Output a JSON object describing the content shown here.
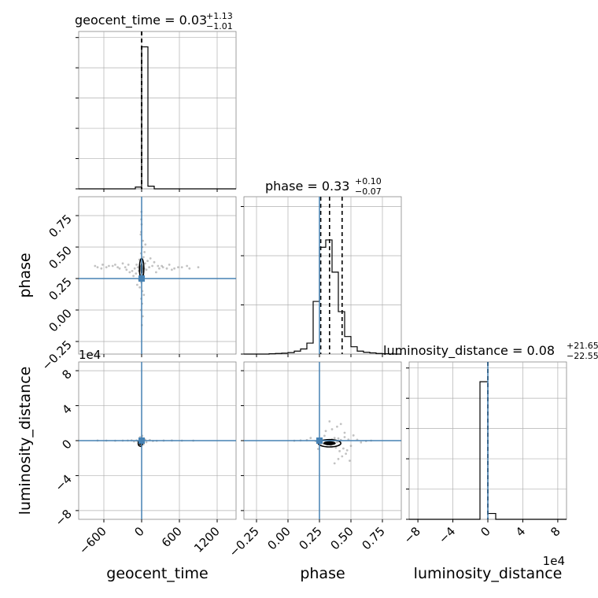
{
  "chart_data": {
    "type": "corner",
    "parameters": [
      "geocent_time",
      "phase",
      "luminosity_distance"
    ],
    "axis_labels": {
      "geocent_time": "geocent_time",
      "phase": "phase",
      "luminosity_distance": "luminosity_distance"
    },
    "offset_labels": {
      "luminosity_distance_y": "1e4",
      "luminosity_distance_x": "1e4"
    },
    "ranges": {
      "geocent_time": [
        -1000,
        1500
      ],
      "phase": [
        -0.35,
        0.9
      ],
      "luminosity_distance": [
        -90000,
        90000
      ]
    },
    "ticks": {
      "geocent_time": [
        {
          "value": -600,
          "label": "−600"
        },
        {
          "value": 0,
          "label": "0"
        },
        {
          "value": 600,
          "label": "600"
        },
        {
          "value": 1200,
          "label": "1200"
        }
      ],
      "phase": [
        {
          "value": -0.25,
          "label": "−0.25"
        },
        {
          "value": 0.0,
          "label": "0.00"
        },
        {
          "value": 0.25,
          "label": "0.25"
        },
        {
          "value": 0.5,
          "label": "0.50"
        },
        {
          "value": 0.75,
          "label": "0.75"
        }
      ],
      "luminosity_distance": [
        {
          "value": -80000,
          "label": "−8"
        },
        {
          "value": -40000,
          "label": "−4"
        },
        {
          "value": 0,
          "label": "0"
        },
        {
          "value": 40000,
          "label": "4"
        },
        {
          "value": 80000,
          "label": "8"
        }
      ]
    },
    "titles": {
      "geocent_time": {
        "name": "geocent_time",
        "median": "0.03",
        "plus": "+1.13",
        "minus": "−1.01"
      },
      "phase": {
        "name": "phase",
        "median": "0.33",
        "plus": "+0.10",
        "minus": "−0.07"
      },
      "luminosity_distance": {
        "name": "luminosity_distance",
        "median": "0.08",
        "plus": "+21.65",
        "minus": "−22.55"
      }
    },
    "quantiles": {
      "geocent_time": [
        -0.98,
        0.03,
        1.16
      ],
      "phase": [
        0.26,
        0.33,
        0.43
      ],
      "luminosity_distance": [
        -22.47,
        0.08,
        21.73
      ]
    },
    "truths": {
      "geocent_time": 0,
      "phase": 0.25,
      "luminosity_distance": 0
    },
    "histograms": {
      "geocent_time": {
        "edges": [
          -1000,
          -900,
          -800,
          -700,
          -600,
          -500,
          -400,
          -300,
          -200,
          -100,
          0,
          100,
          200,
          300,
          400,
          500,
          600,
          700,
          800,
          900,
          1000,
          1100,
          1200,
          1300,
          1400,
          1500
        ],
        "counts": [
          0,
          0,
          0,
          0,
          0,
          0,
          0,
          0,
          0,
          0.012,
          0.97,
          0.018,
          0,
          0,
          0,
          0,
          0,
          0,
          0,
          0,
          0,
          0,
          0,
          0,
          0
        ],
        "note_ymax": 1.0
      },
      "phase": {
        "edges": [
          -0.35,
          -0.3,
          -0.25,
          -0.2,
          -0.15,
          -0.1,
          -0.05,
          0.0,
          0.05,
          0.1,
          0.15,
          0.2,
          0.25,
          0.3,
          0.35,
          0.4,
          0.45,
          0.5,
          0.55,
          0.6,
          0.65,
          0.7,
          0.75,
          0.8,
          0.85,
          0.9
        ],
        "counts": [
          0,
          0,
          0,
          0,
          0.002,
          0.004,
          0.006,
          0.01,
          0.02,
          0.035,
          0.075,
          0.36,
          0.73,
          0.78,
          0.56,
          0.29,
          0.12,
          0.05,
          0.02,
          0.012,
          0.008,
          0.004,
          0.002,
          0.001,
          0
        ],
        "note_ymax": 1.0
      },
      "luminosity_distance": {
        "edges": [
          -90000,
          -81000,
          -72000,
          -63000,
          -54000,
          -45000,
          -36000,
          -27000,
          -18000,
          -9000,
          0,
          9000,
          18000,
          27000,
          36000,
          45000,
          54000,
          63000,
          72000,
          81000,
          90000
        ],
        "counts": [
          0,
          0,
          0,
          0,
          0,
          0,
          0,
          0,
          0,
          0.94,
          0.04,
          0,
          0,
          0,
          0,
          0,
          0,
          0,
          0,
          0
        ],
        "note_ymax": 1.0
      }
    },
    "pairs": [
      {
        "x": "geocent_time",
        "y": "phase"
      },
      {
        "x": "geocent_time",
        "y": "luminosity_distance"
      },
      {
        "x": "phase",
        "y": "luminosity_distance"
      }
    ],
    "samples": {
      "geocent_time_phase": [
        [
          -20,
          0.35
        ],
        [
          15,
          0.3
        ],
        [
          -35,
          0.4
        ],
        [
          25,
          0.28
        ],
        [
          -10,
          0.45
        ],
        [
          40,
          0.33
        ],
        [
          -45,
          0.31
        ],
        [
          5,
          0.38
        ],
        [
          30,
          0.42
        ],
        [
          -25,
          0.26
        ],
        [
          -60,
          0.34
        ],
        [
          55,
          0.37
        ],
        [
          -5,
          0.22
        ],
        [
          10,
          0.5
        ],
        [
          -80,
          0.36
        ],
        [
          75,
          0.32
        ],
        [
          120,
          0.34
        ],
        [
          -110,
          0.33
        ],
        [
          -150,
          0.31
        ],
        [
          170,
          0.35
        ],
        [
          -210,
          0.36
        ],
        [
          230,
          0.3
        ],
        [
          -260,
          0.34
        ],
        [
          280,
          0.33
        ],
        [
          -300,
          0.37
        ],
        [
          320,
          0.35
        ],
        [
          -380,
          0.34
        ],
        [
          400,
          0.33
        ],
        [
          -420,
          0.36
        ],
        [
          480,
          0.32
        ],
        [
          -520,
          0.35
        ],
        [
          580,
          0.34
        ],
        [
          -640,
          0.33
        ],
        [
          720,
          0.35
        ],
        [
          -700,
          0.34
        ],
        [
          -15,
          0.6
        ],
        [
          20,
          0.55
        ],
        [
          -30,
          0.18
        ],
        [
          35,
          0.12
        ],
        [
          0,
          0.68
        ],
        [
          -5,
          0.72
        ],
        [
          8,
          0.05
        ],
        [
          -12,
          0.0
        ],
        [
          18,
          -0.05
        ],
        [
          -8,
          0.62
        ],
        [
          12,
          0.15
        ],
        [
          -40,
          0.24
        ],
        [
          45,
          0.46
        ],
        [
          -90,
          0.29
        ],
        [
          95,
          0.39
        ],
        [
          -130,
          0.27
        ],
        [
          140,
          0.41
        ],
        [
          60,
          0.52
        ],
        [
          -70,
          0.2
        ],
        [
          200,
          0.38
        ],
        [
          -190,
          0.3
        ],
        [
          260,
          0.35
        ],
        [
          -240,
          0.32
        ],
        [
          340,
          0.34
        ],
        [
          -350,
          0.33
        ],
        [
          440,
          0.36
        ],
        [
          -460,
          0.35
        ],
        [
          520,
          0.33
        ],
        [
          -560,
          0.34
        ],
        [
          640,
          0.34
        ],
        [
          -620,
          0.36
        ],
        [
          760,
          0.33
        ],
        [
          -740,
          0.35
        ],
        [
          900,
          0.34
        ],
        [
          -3,
          0.78
        ],
        [
          4,
          -0.12
        ],
        [
          -6,
          0.09
        ]
      ],
      "geocent_time_luminosity_distance": [
        [
          -20,
          -2000
        ],
        [
          15,
          1500
        ],
        [
          -35,
          -3500
        ],
        [
          25,
          2500
        ],
        [
          -10,
          -1000
        ],
        [
          40,
          800
        ],
        [
          -45,
          -5000
        ],
        [
          5,
          3000
        ],
        [
          30,
          -4200
        ],
        [
          -25,
          4000
        ],
        [
          -60,
          -600
        ],
        [
          55,
          1200
        ],
        [
          -5,
          -6500
        ],
        [
          10,
          5500
        ],
        [
          -80,
          200
        ],
        [
          75,
          -1800
        ],
        [
          -120,
          -900
        ],
        [
          130,
          700
        ],
        [
          -160,
          300
        ],
        [
          180,
          -400
        ],
        [
          -220,
          100
        ],
        [
          240,
          -200
        ],
        [
          -300,
          0
        ],
        [
          350,
          50
        ],
        [
          -420,
          -100
        ],
        [
          480,
          150
        ],
        [
          -560,
          0
        ],
        [
          640,
          -50
        ],
        [
          -700,
          80
        ],
        [
          820,
          20
        ]
      ],
      "phase_luminosity_distance": [
        [
          0.3,
          -2000
        ],
        [
          0.35,
          1500
        ],
        [
          0.28,
          -3500
        ],
        [
          0.4,
          2500
        ],
        [
          0.33,
          -1000
        ],
        [
          0.42,
          800
        ],
        [
          0.26,
          -5000
        ],
        [
          0.37,
          3000
        ],
        [
          0.31,
          -4200
        ],
        [
          0.45,
          4000
        ],
        [
          0.22,
          -600
        ],
        [
          0.48,
          1200
        ],
        [
          0.34,
          -6500
        ],
        [
          0.29,
          5500
        ],
        [
          0.36,
          200
        ],
        [
          0.39,
          -1800
        ],
        [
          0.44,
          -9000
        ],
        [
          0.41,
          -12000
        ],
        [
          0.46,
          -15000
        ],
        [
          0.43,
          -18000
        ],
        [
          0.4,
          -21000
        ],
        [
          0.38,
          -8000
        ],
        [
          0.47,
          -11000
        ],
        [
          0.35,
          13000
        ],
        [
          0.39,
          16000
        ],
        [
          0.42,
          19000
        ],
        [
          0.45,
          9000
        ],
        [
          0.5,
          -6000
        ],
        [
          0.18,
          3000
        ],
        [
          0.52,
          6000
        ],
        [
          0.24,
          -9500
        ],
        [
          0.3,
          11000
        ],
        [
          0.49,
          -23000
        ],
        [
          0.37,
          -26000
        ],
        [
          0.33,
          22000
        ],
        [
          0.55,
          1000
        ],
        [
          0.58,
          -2000
        ],
        [
          0.15,
          500
        ],
        [
          0.62,
          -500
        ],
        [
          0.1,
          200
        ],
        [
          0.66,
          0
        ],
        [
          0.05,
          -100
        ]
      ]
    }
  }
}
